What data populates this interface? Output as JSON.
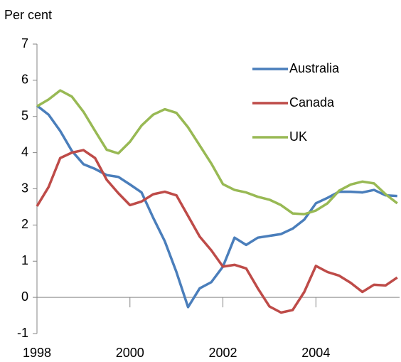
{
  "chart_data": {
    "type": "line",
    "y_label": "Per cent",
    "x": [
      1998,
      1998.25,
      1998.5,
      1998.75,
      1999,
      1999.25,
      1999.5,
      1999.75,
      2000,
      2000.25,
      2000.5,
      2000.75,
      2001,
      2001.25,
      2001.5,
      2001.75,
      2002,
      2002.25,
      2002.5,
      2002.75,
      2003,
      2003.25,
      2003.5,
      2003.75,
      2004,
      2004.25,
      2004.5,
      2004.75,
      2005,
      2005.25,
      2005.5,
      2005.75
    ],
    "series": [
      {
        "name": "Australia",
        "color": "#4a7ebb",
        "values": [
          5.3,
          5.05,
          4.6,
          4.05,
          3.68,
          3.55,
          3.38,
          3.33,
          3.12,
          2.9,
          2.2,
          1.55,
          0.7,
          -0.27,
          0.25,
          0.42,
          0.85,
          1.65,
          1.45,
          1.65,
          1.7,
          1.75,
          1.9,
          2.15,
          2.6,
          2.75,
          2.92,
          2.92,
          2.9,
          2.97,
          2.82,
          2.8
        ]
      },
      {
        "name": "Canada",
        "color": "#be4b48",
        "values": [
          2.52,
          3.05,
          3.85,
          4.0,
          4.07,
          3.85,
          3.25,
          2.88,
          2.55,
          2.65,
          2.85,
          2.92,
          2.82,
          2.25,
          1.68,
          1.3,
          0.85,
          0.9,
          0.8,
          0.25,
          -0.25,
          -0.42,
          -0.35,
          0.15,
          0.87,
          0.7,
          0.6,
          0.4,
          0.15,
          0.35,
          0.33,
          0.55
        ]
      },
      {
        "name": "UK",
        "color": "#98b954",
        "values": [
          5.28,
          5.47,
          5.72,
          5.55,
          5.13,
          4.6,
          4.08,
          3.98,
          4.3,
          4.75,
          5.05,
          5.2,
          5.1,
          4.7,
          4.2,
          3.7,
          3.13,
          2.97,
          2.9,
          2.78,
          2.7,
          2.55,
          2.32,
          2.3,
          2.4,
          2.6,
          2.95,
          3.12,
          3.2,
          3.15,
          2.85,
          2.6
        ]
      }
    ],
    "xlim": [
      1998,
      2005.8
    ],
    "xticks": [
      1998,
      2000,
      2002,
      2004
    ],
    "ylim": [
      -1,
      7
    ],
    "yticks": [
      -1,
      0,
      1,
      2,
      3,
      4,
      5,
      6,
      7
    ]
  }
}
